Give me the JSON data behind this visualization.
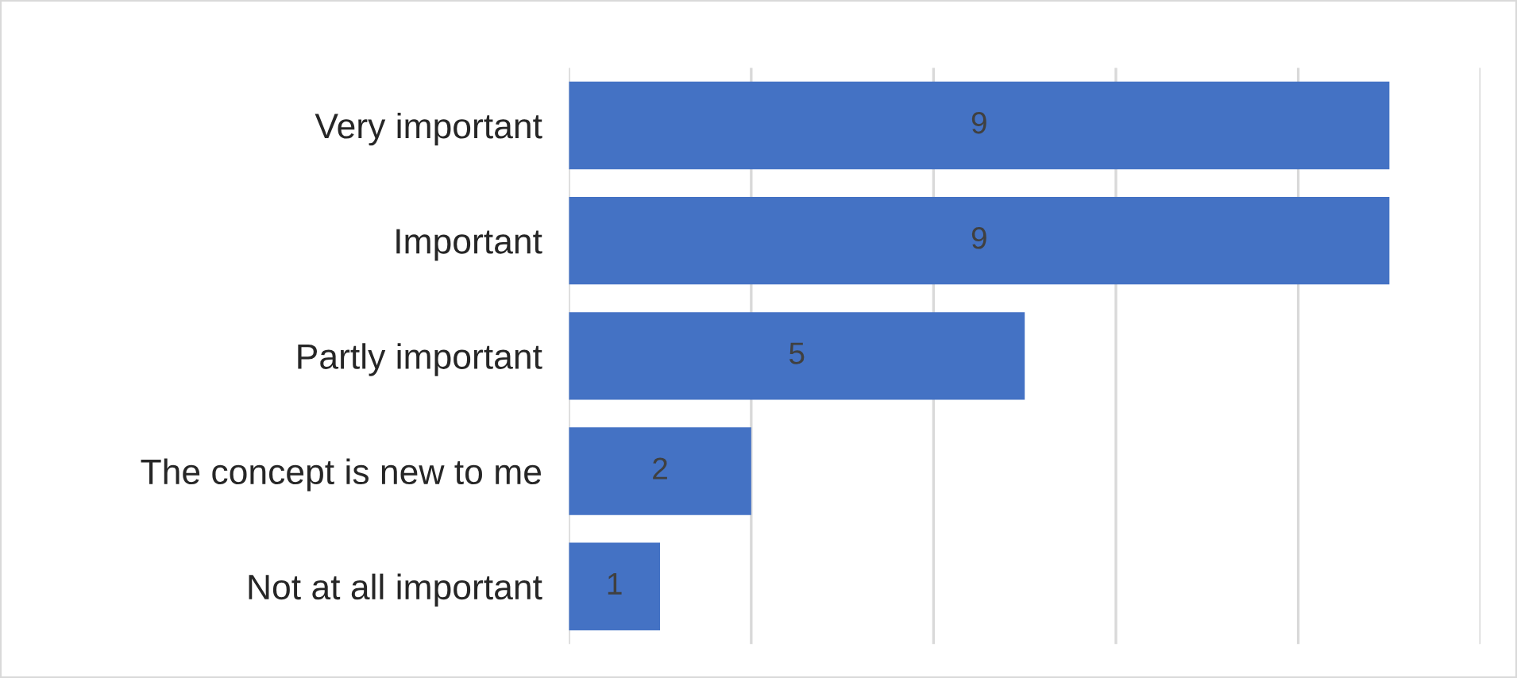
{
  "chart_data": {
    "type": "bar",
    "orientation": "horizontal",
    "categories": [
      "Very important",
      "Important",
      "Partly important",
      "The concept is new to me",
      "Not at all important"
    ],
    "values": [
      9,
      9,
      5,
      2,
      1
    ],
    "color": "#4472c4",
    "xlim": [
      0,
      10
    ],
    "xticks": [
      {
        "value": 0,
        "label": null
      },
      {
        "value": 2,
        "label": null
      },
      {
        "value": 4,
        "label": null
      },
      {
        "value": 6,
        "label": null
      },
      {
        "value": 8,
        "label": null
      },
      {
        "value": 10,
        "label": null
      }
    ],
    "grid": "x",
    "tick_labels": "y",
    "data_labels": true
  }
}
